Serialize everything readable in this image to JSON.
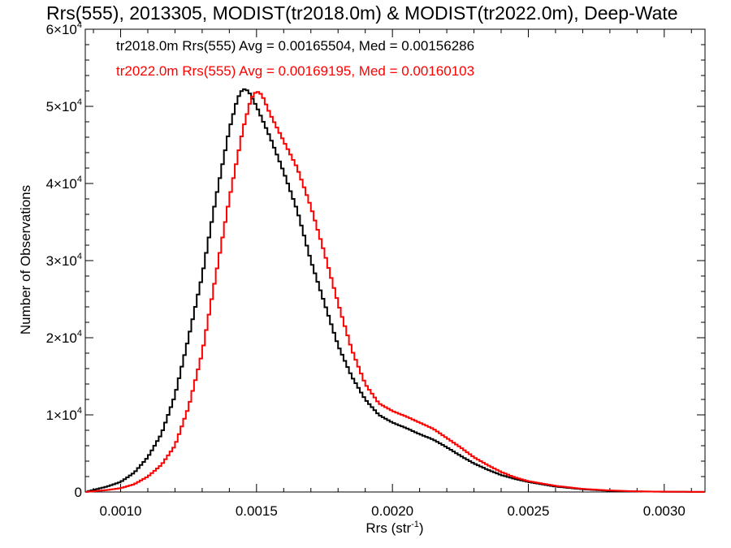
{
  "chart_data": {
    "type": "line",
    "title": "Rrs(555), 2013305, MODIST(tr2018.0m) & MODIST(tr2022.0m), Deep-Wate",
    "xlabel": "Rrs (str",
    "xlabel_sup": "-1",
    "xlabel_end": ")",
    "ylabel": "Number of Observations",
    "xlim": [
      0.00087,
      0.00315
    ],
    "ylim": [
      0,
      60000
    ],
    "xticks": [
      0.001,
      0.0015,
      0.002,
      0.0025,
      0.003
    ],
    "xtick_labels": [
      "0.0010",
      "0.0015",
      "0.0020",
      "0.0025",
      "0.0030"
    ],
    "yticks": [
      0,
      10000,
      20000,
      30000,
      40000,
      50000,
      60000
    ],
    "ytick_labels": [
      {
        "base": "0",
        "exp": ""
      },
      {
        "base": "1×10",
        "exp": "4"
      },
      {
        "base": "2×10",
        "exp": "4"
      },
      {
        "base": "3×10",
        "exp": "4"
      },
      {
        "base": "4×10",
        "exp": "4"
      },
      {
        "base": "5×10",
        "exp": "4"
      },
      {
        "base": "6×10",
        "exp": "4"
      }
    ],
    "grid": false,
    "series": [
      {
        "annotation": "tr2018.0m Rrs(555) Avg = 0.00165504, Med = 0.00156286",
        "color": "#000000",
        "points": [
          [
            0.00087,
            0
          ],
          [
            0.00095,
            700
          ],
          [
            0.001,
            1300
          ],
          [
            0.00105,
            2500
          ],
          [
            0.0011,
            4500
          ],
          [
            0.00115,
            7500
          ],
          [
            0.0012,
            12500
          ],
          [
            0.00125,
            20000
          ],
          [
            0.0013,
            28000
          ],
          [
            0.00135,
            38000
          ],
          [
            0.0014,
            47000
          ],
          [
            0.00143,
            51000
          ],
          [
            0.00145,
            52300
          ],
          [
            0.00147,
            52000
          ],
          [
            0.0015,
            50000
          ],
          [
            0.00155,
            46000
          ],
          [
            0.0016,
            41500
          ],
          [
            0.00165,
            36500
          ],
          [
            0.0017,
            30000
          ],
          [
            0.00175,
            24500
          ],
          [
            0.0018,
            19000
          ],
          [
            0.00185,
            15000
          ],
          [
            0.0019,
            12000
          ],
          [
            0.00195,
            10000
          ],
          [
            0.002,
            9000
          ],
          [
            0.00205,
            8300
          ],
          [
            0.0021,
            7500
          ],
          [
            0.00215,
            6800
          ],
          [
            0.0022,
            5800
          ],
          [
            0.00225,
            4700
          ],
          [
            0.0023,
            3700
          ],
          [
            0.00235,
            2900
          ],
          [
            0.0024,
            2200
          ],
          [
            0.00245,
            1700
          ],
          [
            0.0025,
            1300
          ],
          [
            0.0026,
            700
          ],
          [
            0.0027,
            350
          ],
          [
            0.0028,
            150
          ],
          [
            0.0029,
            70
          ],
          [
            0.003,
            30
          ],
          [
            0.00315,
            10
          ]
        ]
      },
      {
        "annotation": "tr2022.0m Rrs(555) Avg = 0.00169195, Med = 0.00160103",
        "color": "#ff0000",
        "points": [
          [
            0.00087,
            0
          ],
          [
            0.00095,
            250
          ],
          [
            0.001,
            500
          ],
          [
            0.00105,
            1000
          ],
          [
            0.0011,
            2000
          ],
          [
            0.00115,
            3500
          ],
          [
            0.0012,
            6000
          ],
          [
            0.00125,
            11000
          ],
          [
            0.0013,
            18000
          ],
          [
            0.00135,
            28000
          ],
          [
            0.0014,
            38000
          ],
          [
            0.00145,
            47000
          ],
          [
            0.00148,
            51000
          ],
          [
            0.0015,
            52000
          ],
          [
            0.00152,
            51500
          ],
          [
            0.00155,
            49000
          ],
          [
            0.0016,
            45500
          ],
          [
            0.00165,
            42000
          ],
          [
            0.0017,
            37000
          ],
          [
            0.00175,
            31000
          ],
          [
            0.0018,
            24500
          ],
          [
            0.00185,
            18500
          ],
          [
            0.0019,
            14000
          ],
          [
            0.00195,
            11500
          ],
          [
            0.002,
            10500
          ],
          [
            0.00205,
            9800
          ],
          [
            0.0021,
            9000
          ],
          [
            0.00215,
            8200
          ],
          [
            0.0022,
            7000
          ],
          [
            0.00225,
            5800
          ],
          [
            0.0023,
            4500
          ],
          [
            0.00235,
            3500
          ],
          [
            0.0024,
            2600
          ],
          [
            0.00245,
            1900
          ],
          [
            0.0025,
            1400
          ],
          [
            0.0026,
            800
          ],
          [
            0.0027,
            400
          ],
          [
            0.0028,
            200
          ],
          [
            0.0029,
            80
          ],
          [
            0.003,
            40
          ],
          [
            0.00315,
            10
          ]
        ]
      }
    ]
  }
}
